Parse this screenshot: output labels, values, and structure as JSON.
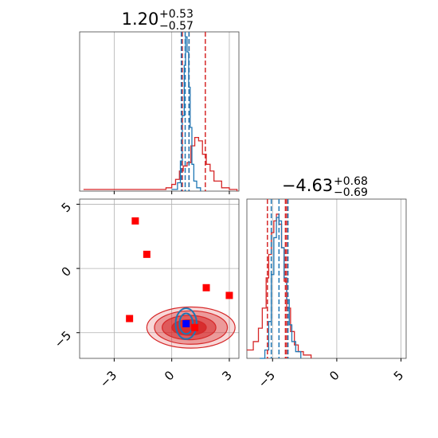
{
  "chart_data": {
    "type": "corner",
    "colors": {
      "series_a": "#d62728",
      "series_b": "#1f77b4",
      "marker_a": "#ff0000",
      "marker_b": "#0000ff",
      "grid": "#b0b0b0"
    },
    "x_param": {
      "title_main": "1.20",
      "title_sup": "+0.53",
      "title_sub": "−0.57",
      "range": [
        -4.8,
        3.5
      ],
      "ticks": [
        -3,
        0,
        3
      ],
      "tick_labels": [
        "−3",
        "0",
        "3"
      ]
    },
    "y_param": {
      "title_main": "−4.63",
      "title_sup": "+0.68",
      "title_sub": "−0.69",
      "range": [
        -7,
        5.4
      ],
      "ticks": [
        -5,
        0,
        5
      ],
      "tick_labels": [
        "−5",
        "0",
        "5"
      ]
    },
    "x_marginal": {
      "red_hist": {
        "x": [
          -4.6,
          -0.3,
          0.0,
          0.2,
          0.4,
          0.6,
          0.8,
          1.0,
          1.2,
          1.4,
          1.6,
          1.8,
          2.0,
          2.2,
          2.6,
          3.0,
          3.4
        ],
        "counts": [
          0.01,
          0.02,
          0.04,
          0.07,
          0.12,
          0.15,
          0.17,
          0.27,
          0.32,
          0.3,
          0.22,
          0.16,
          0.12,
          0.06,
          0.02,
          0.01,
          0.0
        ]
      },
      "blue_hist": {
        "x": [
          0.0,
          0.3,
          0.45,
          0.55,
          0.65,
          0.72,
          0.8,
          0.88,
          0.96,
          1.05,
          1.15,
          1.3,
          1.5
        ],
        "counts": [
          0.01,
          0.05,
          0.18,
          0.45,
          0.75,
          0.92,
          0.83,
          0.62,
          0.38,
          0.16,
          0.06,
          0.02,
          0.0
        ]
      },
      "red_quantiles": [
        0.55,
        0.9,
        1.75
      ],
      "blue_quantiles": [
        0.5,
        0.7,
        0.9
      ]
    },
    "y_marginal": {
      "red_hist": {
        "x": [
          -7,
          -6.5,
          -6.1,
          -5.8,
          -5.5,
          -5.3,
          -5.1,
          -4.9,
          -4.7,
          -4.5,
          -4.3,
          -4.1,
          -3.9,
          -3.6,
          -3.3,
          -3.0,
          -2.6,
          -2.0
        ],
        "counts": [
          0.05,
          0.1,
          0.18,
          0.3,
          0.48,
          0.62,
          0.75,
          0.82,
          0.86,
          0.8,
          0.66,
          0.46,
          0.3,
          0.16,
          0.08,
          0.04,
          0.02,
          0.0
        ]
      },
      "blue_hist": {
        "x": [
          -6.0,
          -5.6,
          -5.3,
          -5.1,
          -4.9,
          -4.7,
          -4.5,
          -4.3,
          -4.1,
          -3.9,
          -3.7,
          -3.5,
          -3.2,
          -2.8
        ],
        "counts": [
          0.0,
          0.05,
          0.22,
          0.5,
          0.72,
          0.84,
          0.82,
          0.66,
          0.48,
          0.35,
          0.2,
          0.1,
          0.04,
          0.0
        ]
      },
      "red_quantiles": [
        -5.4,
        -4.0,
        -3.9
      ],
      "blue_quantiles": [
        -5.1,
        -4.5,
        -3.8
      ]
    },
    "joint": {
      "red_contours": [
        {
          "cx": 1.0,
          "cy": -4.6,
          "rx": 2.3,
          "ry": 1.6
        },
        {
          "cx": 1.0,
          "cy": -4.6,
          "rx": 1.9,
          "ry": 1.3
        },
        {
          "cx": 0.9,
          "cy": -4.6,
          "rx": 1.4,
          "ry": 0.95
        },
        {
          "cx": 0.9,
          "cy": -4.6,
          "rx": 0.9,
          "ry": 0.6
        }
      ],
      "blue_contours": [
        {
          "cx": 0.75,
          "cy": -4.3,
          "rx": 0.55,
          "ry": 1.2
        },
        {
          "cx": 0.75,
          "cy": -4.3,
          "rx": 0.35,
          "ry": 0.8
        }
      ],
      "red_markers": [
        {
          "x": -1.9,
          "y": 3.7
        },
        {
          "x": -1.3,
          "y": 1.1
        },
        {
          "x": 1.8,
          "y": -1.5
        },
        {
          "x": 3.0,
          "y": -2.1
        },
        {
          "x": -2.2,
          "y": -3.9
        },
        {
          "x": 1.2,
          "y": -4.6
        }
      ],
      "blue_markers": [
        {
          "x": 0.75,
          "y": -4.3
        }
      ]
    }
  }
}
